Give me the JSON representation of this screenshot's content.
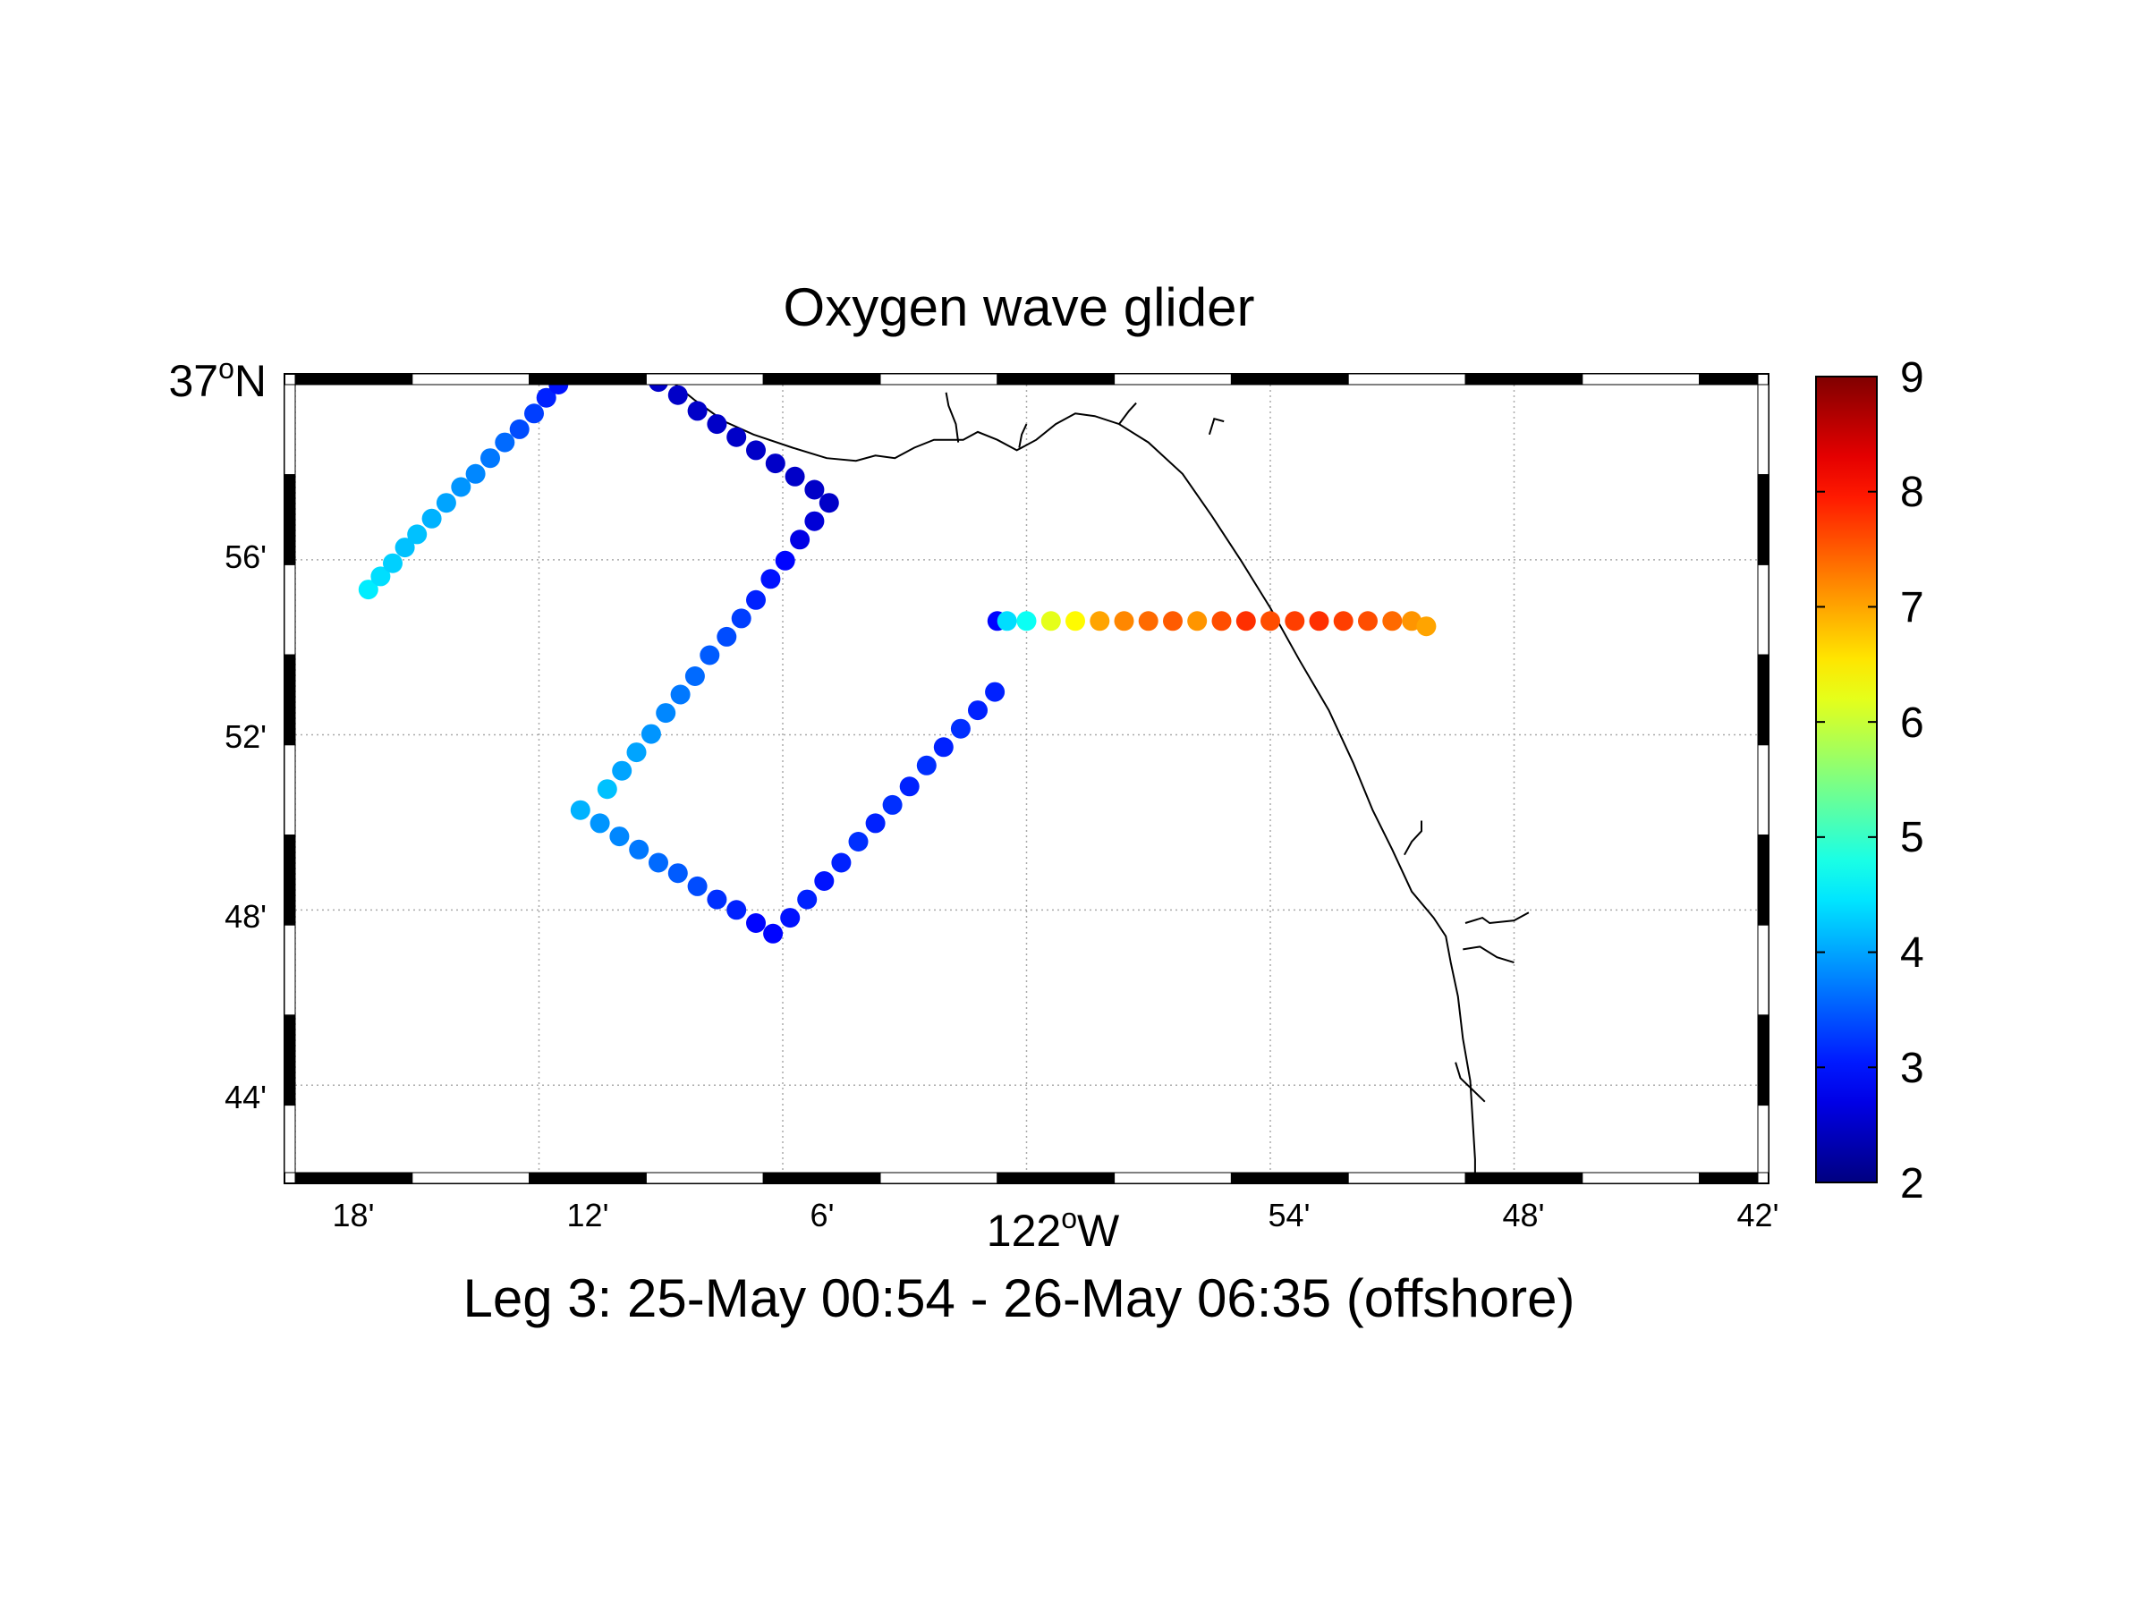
{
  "title": "Oxygen wave glider",
  "subtitle": "Leg 3: 25-May 00:54 - 26-May 06:35 (offshore)",
  "axes": {
    "y_main_label": {
      "deg": "37",
      "sup": "o",
      "hemi": "N"
    },
    "x_main_label": {
      "deg": "122",
      "sup": "o",
      "hemi": "W"
    },
    "y_ticks": [
      "56'",
      "52'",
      "48'",
      "44'"
    ],
    "x_ticks": [
      "18'",
      "12'",
      "6'",
      "54'",
      "48'",
      "42'"
    ]
  },
  "colorbar": {
    "min": 2,
    "max": 9,
    "ticks": [
      "9",
      "8",
      "7",
      "6",
      "5",
      "4",
      "3",
      "2"
    ],
    "colormap": "jet"
  },
  "chart_data": {
    "type": "scatter",
    "title": "Oxygen wave glider",
    "xlabel": "122°W",
    "ylabel": "37°N",
    "x_units": "longitude (decimal degrees)",
    "y_units": "latitude (decimal degrees)",
    "xlim": [
      -122.3,
      -121.7
    ],
    "ylim": [
      36.7,
      37.0
    ],
    "grid": true,
    "colorbar_range": [
      2,
      9
    ],
    "coastline": [
      [
        -122.144,
        37.0
      ],
      [
        -122.136,
        36.994
      ],
      [
        -122.124,
        36.986
      ],
      [
        -122.112,
        36.981
      ],
      [
        -122.096,
        36.976
      ],
      [
        -122.082,
        36.972
      ],
      [
        -122.07,
        36.971
      ],
      [
        -122.062,
        36.973
      ],
      [
        -122.054,
        36.972
      ],
      [
        -122.046,
        36.976
      ],
      [
        -122.038,
        36.979
      ],
      [
        -122.026,
        36.979
      ],
      [
        -122.02,
        36.982
      ],
      [
        -122.012,
        36.979
      ],
      [
        -122.004,
        36.975
      ],
      [
        -121.996,
        36.979
      ],
      [
        -121.988,
        36.985
      ],
      [
        -121.98,
        36.989
      ],
      [
        -121.972,
        36.988
      ],
      [
        -121.962,
        36.985
      ],
      [
        -121.95,
        36.978
      ],
      [
        -121.936,
        36.966
      ],
      [
        -121.924,
        36.95
      ],
      [
        -121.912,
        36.933
      ],
      [
        -121.9,
        36.915
      ],
      [
        -121.888,
        36.895
      ],
      [
        -121.876,
        36.876
      ],
      [
        -121.866,
        36.856
      ],
      [
        -121.858,
        36.838
      ],
      [
        -121.85,
        36.823
      ],
      [
        -121.842,
        36.807
      ],
      [
        -121.833,
        36.797
      ],
      [
        -121.828,
        36.79
      ],
      [
        -121.826,
        36.78
      ],
      [
        -121.823,
        36.767
      ],
      [
        -121.821,
        36.751
      ],
      [
        -121.818,
        36.735
      ],
      [
        -121.817,
        36.72
      ],
      [
        -121.816,
        36.705
      ],
      [
        -121.816,
        36.7
      ]
    ],
    "rivers": [
      [
        [
          -122.028,
          36.978
        ],
        [
          -122.029,
          36.985
        ],
        [
          -122.032,
          36.992
        ],
        [
          -122.033,
          36.997
        ]
      ],
      [
        [
          -122.003,
          36.976
        ],
        [
          -122.002,
          36.981
        ],
        [
          -122.0,
          36.985
        ]
      ],
      [
        [
          -121.962,
          36.985
        ],
        [
          -121.958,
          36.99
        ],
        [
          -121.955,
          36.993
        ]
      ],
      [
        [
          -121.925,
          36.981
        ],
        [
          -121.923,
          36.987
        ],
        [
          -121.919,
          36.986
        ]
      ],
      [
        [
          -121.845,
          36.821
        ],
        [
          -121.842,
          36.826
        ],
        [
          -121.838,
          36.83
        ],
        [
          -121.838,
          36.834
        ]
      ],
      [
        [
          -121.82,
          36.795
        ],
        [
          -121.813,
          36.797
        ],
        [
          -121.81,
          36.795
        ],
        [
          -121.8,
          36.796
        ],
        [
          -121.794,
          36.799
        ]
      ],
      [
        [
          -121.821,
          36.785
        ],
        [
          -121.814,
          36.786
        ],
        [
          -121.807,
          36.782
        ],
        [
          -121.8,
          36.78
        ]
      ],
      [
        [
          -121.824,
          36.742
        ],
        [
          -121.822,
          36.736
        ],
        [
          -121.812,
          36.727
        ]
      ]
    ],
    "series": [
      {
        "name": "Oxygen",
        "color_values": [
          4.5,
          4.4,
          4.3,
          4.2,
          4.2,
          4.1,
          4.0,
          3.9,
          3.8,
          3.7,
          3.6,
          3.4,
          3.3,
          3.1,
          3.0,
          2.9,
          2.8,
          2.5,
          2.5,
          2.5,
          2.5,
          2.5,
          2.5,
          2.5,
          2.5,
          2.5,
          2.5,
          2.5,
          2.5,
          2.5,
          2.6,
          2.7,
          2.9,
          3.0,
          3.1,
          3.3,
          3.4,
          3.5,
          3.6,
          3.7,
          3.8,
          3.9,
          4.0,
          4.0,
          4.2,
          4.1,
          3.9,
          3.8,
          3.7,
          3.6,
          3.5,
          3.4,
          3.2,
          3.1,
          2.9,
          2.9,
          3.0,
          3.1,
          3.0,
          3.1,
          3.2,
          3.1,
          3.2,
          3.1,
          3.2,
          3.1,
          3.2,
          3.1,
          3.1,
          2.9,
          4.4,
          4.7,
          6.2,
          6.4,
          7.0,
          7.2,
          7.4,
          7.5,
          7.1,
          7.6,
          7.8,
          7.6,
          7.7,
          7.8,
          7.7,
          7.6,
          7.4,
          7.1,
          7.0
        ],
        "lon": [
          -122.27,
          -122.265,
          -122.26,
          -122.255,
          -122.25,
          -122.244,
          -122.238,
          -122.232,
          -122.226,
          -122.22,
          -122.214,
          -122.208,
          -122.202,
          -122.197,
          -122.192,
          -122.186,
          -122.18,
          -122.175,
          -122.167,
          -122.159,
          -122.151,
          -122.143,
          -122.135,
          -122.127,
          -122.119,
          -122.111,
          -122.103,
          -122.095,
          -122.087,
          -122.081,
          -122.087,
          -122.093,
          -122.099,
          -122.105,
          -122.111,
          -122.117,
          -122.123,
          -122.13,
          -122.136,
          -122.142,
          -122.148,
          -122.154,
          -122.16,
          -122.166,
          -122.172,
          -122.183,
          -122.175,
          -122.167,
          -122.159,
          -122.151,
          -122.143,
          -122.135,
          -122.127,
          -122.119,
          -122.111,
          -122.104,
          -122.097,
          -122.09,
          -122.083,
          -122.076,
          -122.069,
          -122.062,
          -122.055,
          -122.048,
          -122.041,
          -122.034,
          -122.027,
          -122.02,
          -122.013,
          -122.012,
          -122.008,
          -122.0,
          -121.99,
          -121.98,
          -121.97,
          -121.96,
          -121.95,
          -121.94,
          -121.93,
          -121.92,
          -121.91,
          -121.9,
          -121.89,
          -121.88,
          -121.87,
          -121.86,
          -121.85,
          -121.842,
          -121.836
        ],
        "lat": [
          36.922,
          36.927,
          36.932,
          36.938,
          36.943,
          36.949,
          36.955,
          36.961,
          36.966,
          36.972,
          36.978,
          36.983,
          36.989,
          36.995,
          37.0,
          37.006,
          37.011,
          37.015,
          37.011,
          37.006,
          37.001,
          36.996,
          36.99,
          36.985,
          36.98,
          36.975,
          36.97,
          36.965,
          36.96,
          36.955,
          36.948,
          36.941,
          36.933,
          36.926,
          36.918,
          36.911,
          36.904,
          36.897,
          36.889,
          36.882,
          36.875,
          36.867,
          36.86,
          36.853,
          36.846,
          36.838,
          36.833,
          36.828,
          36.823,
          36.818,
          36.814,
          36.809,
          36.804,
          36.8,
          36.795,
          36.791,
          36.797,
          36.804,
          36.811,
          36.818,
          36.826,
          36.833,
          36.84,
          36.847,
          36.855,
          36.862,
          36.869,
          36.876,
          36.883,
          36.91,
          36.91,
          36.91,
          36.91,
          36.91,
          36.91,
          36.91,
          36.91,
          36.91,
          36.91,
          36.91,
          36.91,
          36.91,
          36.91,
          36.91,
          36.91,
          36.91,
          36.91,
          36.91,
          36.908
        ]
      }
    ]
  }
}
